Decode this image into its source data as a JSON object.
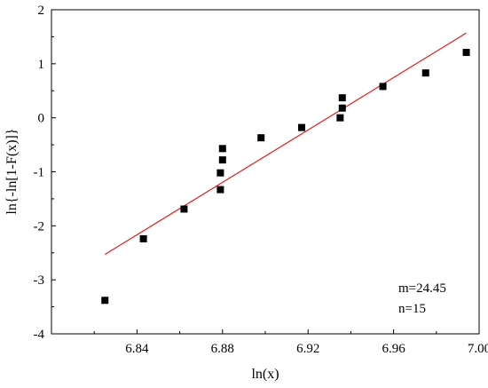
{
  "chart_data": {
    "type": "scatter",
    "xlabel": "ln(x)",
    "ylabel": "ln{-ln[1-F(x)]}",
    "xlim": [
      6.8,
      7.0
    ],
    "ylim": [
      -4,
      2
    ],
    "x_ticks": [
      6.84,
      6.88,
      6.92,
      6.96,
      7.0
    ],
    "x_tick_labels": [
      "6.84",
      "6.88",
      "6.92",
      "6.96",
      "7.00"
    ],
    "y_ticks": [
      -4,
      -3,
      -2,
      -1,
      0,
      1,
      2
    ],
    "y_tick_labels": [
      "-4",
      "-3",
      "-2",
      "-1",
      "0",
      "1",
      "2"
    ],
    "grid": false,
    "series": [
      {
        "type": "scatter",
        "marker": "square",
        "color": "#000000",
        "x": [
          6.825,
          6.843,
          6.862,
          6.879,
          6.879,
          6.88,
          6.88,
          6.898,
          6.917,
          6.935,
          6.936,
          6.936,
          6.955,
          6.975,
          6.994
        ],
        "y": [
          -3.38,
          -2.24,
          -1.69,
          -1.33,
          -1.02,
          -0.78,
          -0.57,
          -0.37,
          -0.18,
          0.0,
          0.18,
          0.37,
          0.58,
          0.83,
          1.21
        ]
      },
      {
        "type": "line",
        "color": "#e8191a",
        "x": [
          6.825,
          6.994
        ],
        "y": [
          -2.53,
          1.57
        ]
      }
    ],
    "annotations": [
      "m=24.45",
      "n=15"
    ]
  }
}
